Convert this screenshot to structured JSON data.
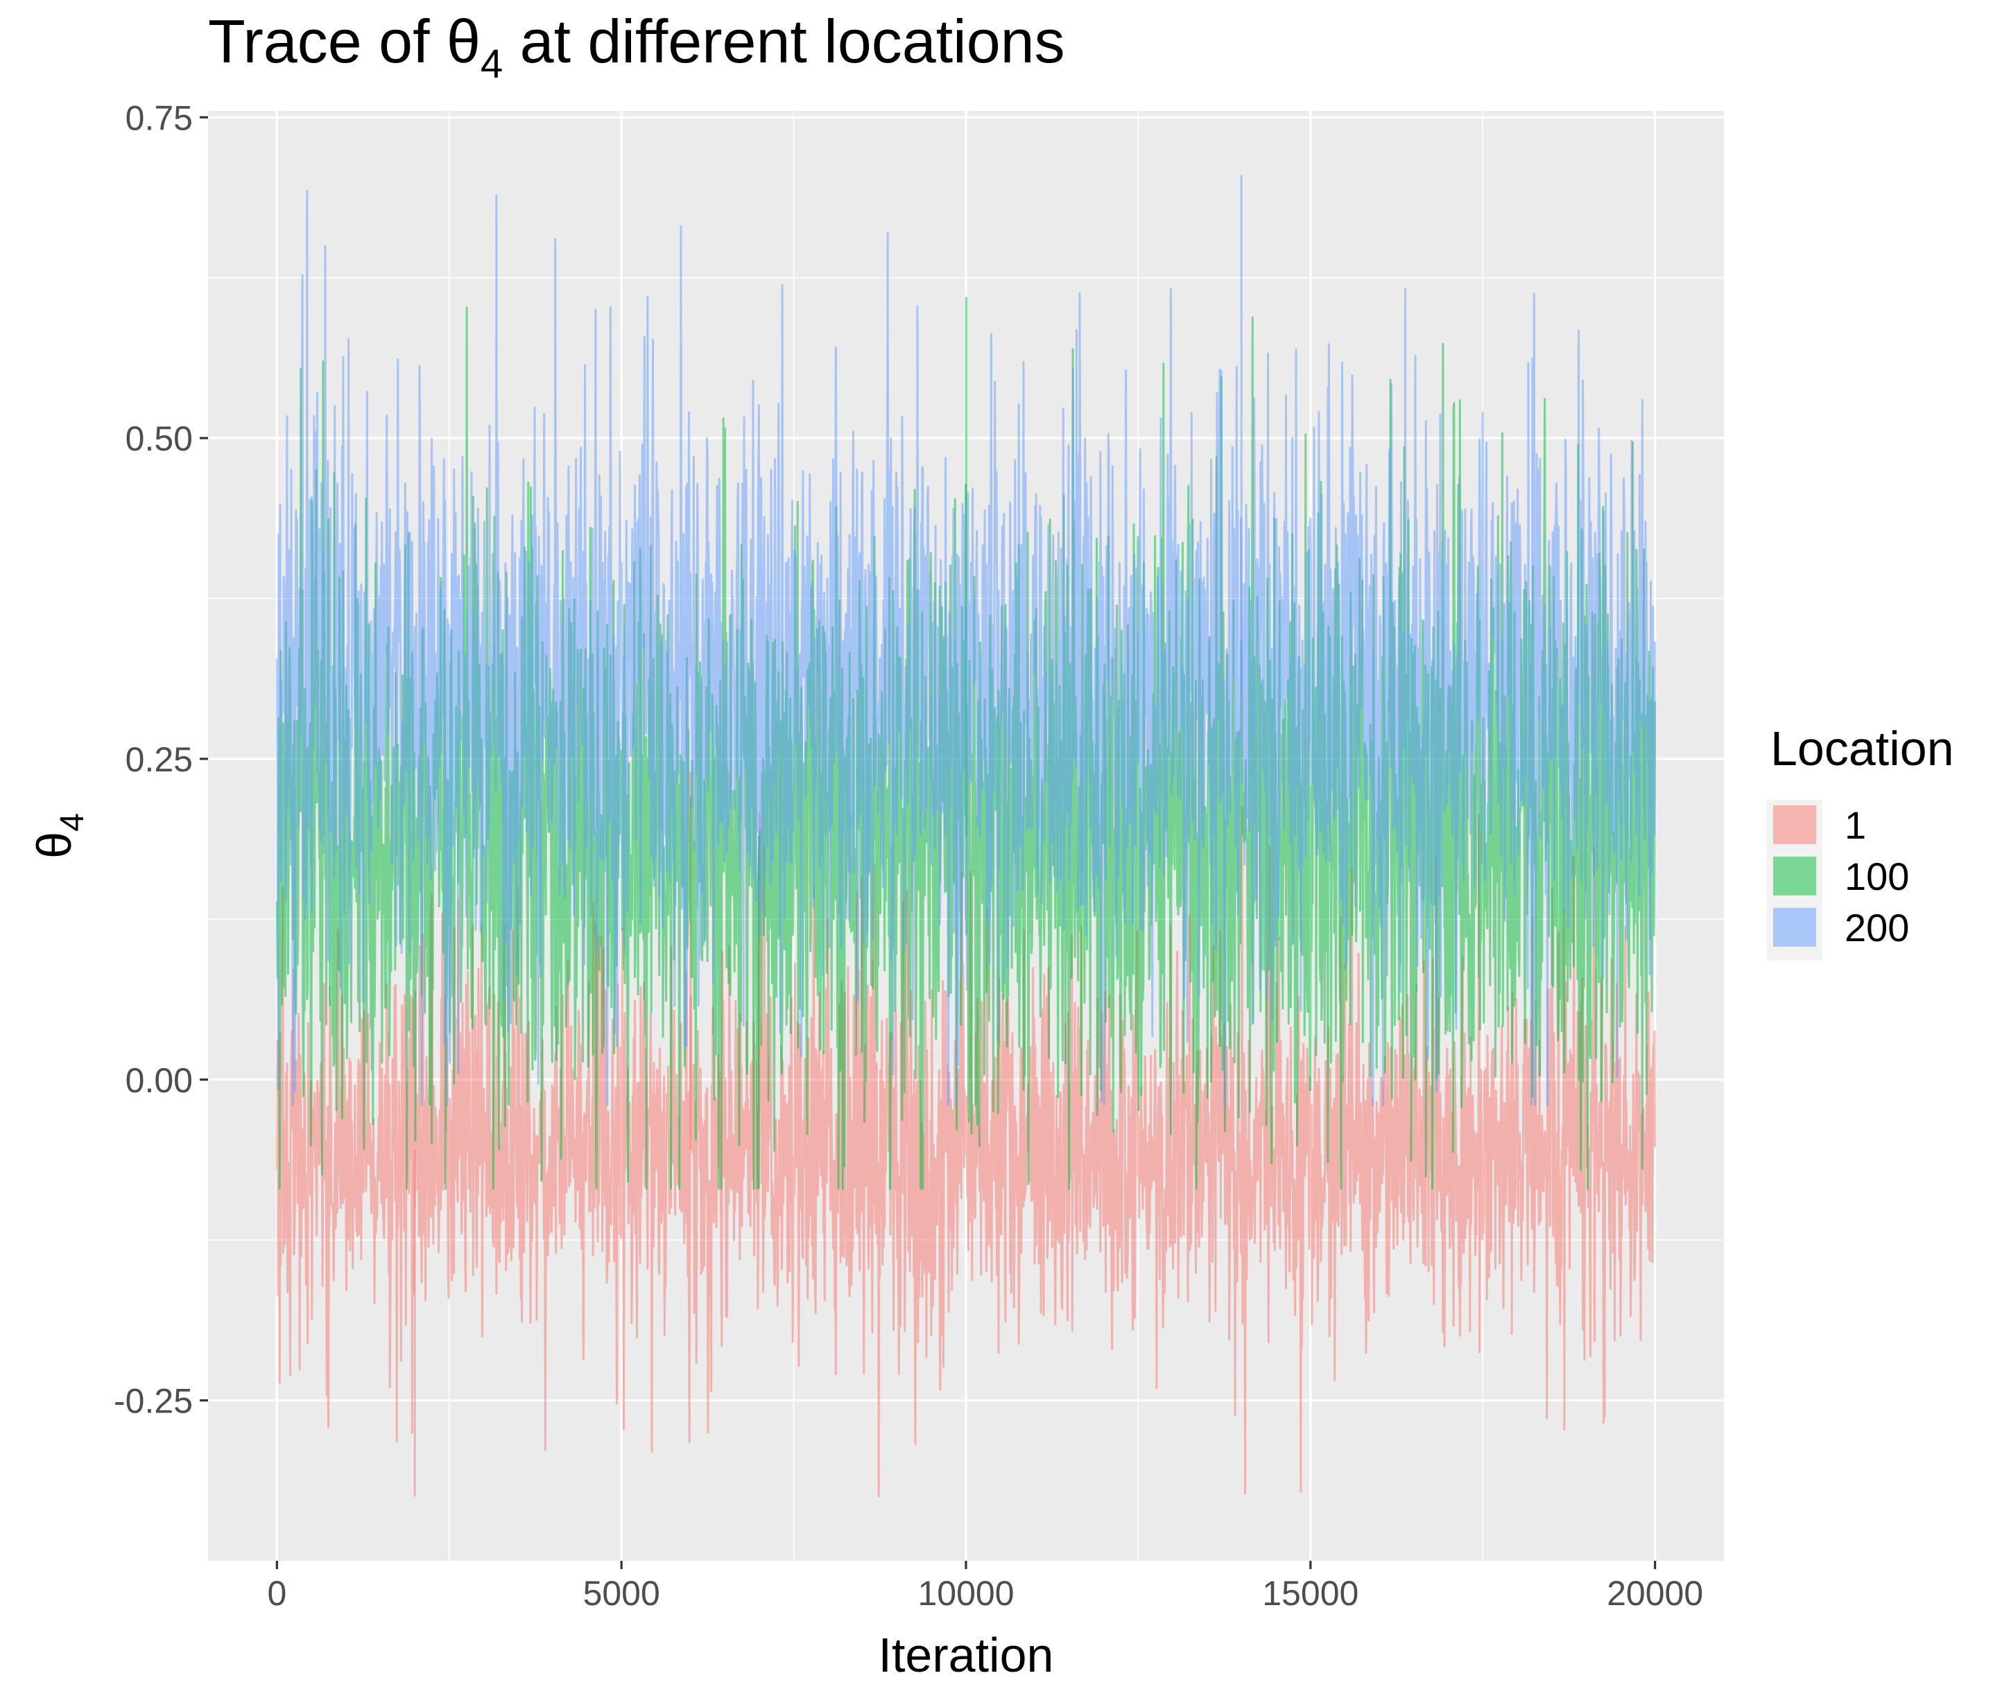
{
  "chart_data": {
    "type": "line",
    "title": "Trace of θ",
    "title_subscript": "4",
    "title_suffix": " at different locations",
    "xlabel": "Iteration",
    "ylabel": "θ",
    "ylabel_subscript": "4",
    "xlim": [
      -1000,
      21000
    ],
    "ylim": [
      -0.375,
      0.755
    ],
    "x_ticks": [
      0,
      5000,
      10000,
      15000,
      20000
    ],
    "x_tick_labels": [
      "0",
      "5000",
      "10000",
      "15000",
      "20000"
    ],
    "y_ticks": [
      -0.25,
      0.0,
      0.25,
      0.5,
      0.75
    ],
    "y_tick_labels": [
      "-0.25",
      "0.00",
      "0.25",
      "0.50",
      "0.75"
    ],
    "grid": true,
    "n_iterations": 20000,
    "legend": {
      "title": "Location",
      "placement": "right"
    },
    "series": [
      {
        "name": "1",
        "color": "#F8766D",
        "mean": -0.055,
        "typical_low": -0.17,
        "typical_high": 0.06,
        "min": -0.325,
        "max": 0.24
      },
      {
        "name": "100",
        "color": "#00BA38",
        "mean": 0.19,
        "typical_low": 0.05,
        "typical_high": 0.42,
        "min": -0.085,
        "max": 0.61
      },
      {
        "name": "200",
        "color": "#619CFF",
        "mean": 0.3,
        "typical_low": 0.14,
        "typical_high": 0.5,
        "min": -0.02,
        "max": 0.705
      }
    ]
  }
}
